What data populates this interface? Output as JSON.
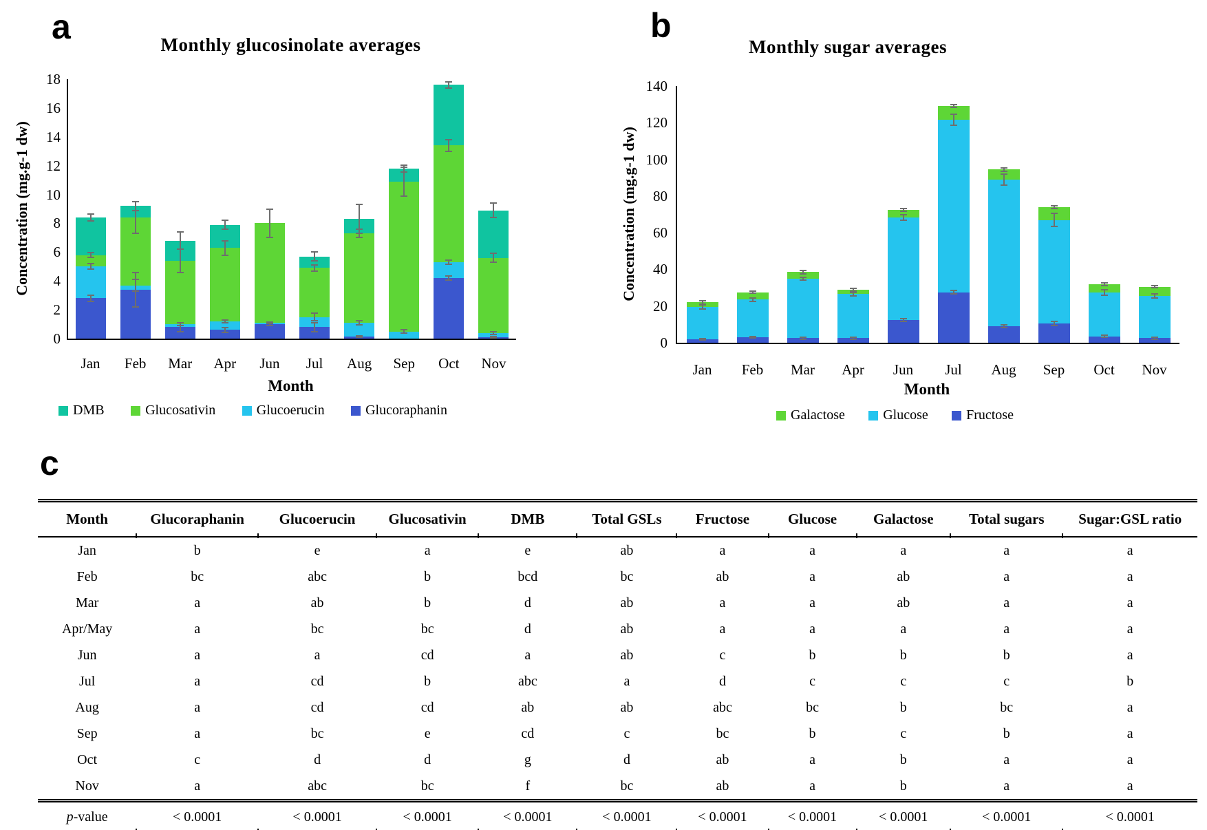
{
  "panels": {
    "a": "a",
    "b": "b",
    "c": "c"
  },
  "chart_data": [
    {
      "id": "monthly-glucosinolate-averages",
      "type": "bar",
      "stacked": true,
      "title": "Monthly glucosinolate averages",
      "xlabel": "Month",
      "ylabel": "Concentration (mg.g-1 dw)",
      "ylim": [
        0,
        18
      ],
      "ytick_step": 2,
      "grid": false,
      "legend_position": "bottom",
      "categories": [
        "Jan",
        "Feb",
        "Mar",
        "Apr",
        "Jun",
        "Jul",
        "Aug",
        "Sep",
        "Oct",
        "Nov"
      ],
      "series": [
        {
          "name": "Glucoraphanin",
          "color": "#3b57ce",
          "values": [
            2.8,
            3.4,
            0.8,
            0.6,
            1.0,
            0.8,
            0.15,
            0.0,
            4.2,
            0.1
          ],
          "errors": [
            0.2,
            1.2,
            0.3,
            0.15,
            0.1,
            0.3,
            0.05,
            0.0,
            0.15,
            0.05
          ]
        },
        {
          "name": "Glucoerucin",
          "color": "#25c4ee",
          "values": [
            2.2,
            0.3,
            0.2,
            0.6,
            0.1,
            0.7,
            0.95,
            0.5,
            1.1,
            0.3
          ],
          "errors": [
            0.2,
            0.4,
            0.1,
            0.1,
            0.05,
            0.25,
            0.15,
            0.1,
            0.15,
            0.1
          ]
        },
        {
          "name": "Glucosativin",
          "color": "#5ed636",
          "values": [
            0.8,
            4.7,
            4.4,
            5.1,
            6.9,
            3.4,
            6.2,
            10.4,
            8.1,
            5.2
          ],
          "errors": [
            0.15,
            1.1,
            0.8,
            0.5,
            1.0,
            0.2,
            0.3,
            1.0,
            0.4,
            0.3
          ]
        },
        {
          "name": "DMB",
          "color": "#10c4a0",
          "values": [
            2.6,
            0.8,
            1.4,
            1.6,
            0.0,
            0.8,
            1.0,
            0.9,
            4.2,
            3.3
          ],
          "errors": [
            0.25,
            0.3,
            0.6,
            0.3,
            0.0,
            0.3,
            1.0,
            0.25,
            0.2,
            0.5
          ]
        }
      ],
      "legend": [
        "DMB",
        "Glucosativin",
        "Glucoerucin",
        "Glucoraphanin"
      ]
    },
    {
      "id": "monthly-sugar-averages",
      "type": "bar",
      "stacked": true,
      "title": "Monthly sugar averages",
      "xlabel": "Month",
      "ylabel": "Concentration (mg.g-1 dw)",
      "ylim": [
        0,
        140
      ],
      "ytick_step": 20,
      "grid": false,
      "legend_position": "bottom",
      "categories": [
        "Jan",
        "Feb",
        "Mar",
        "Apr",
        "Jun",
        "Jul",
        "Aug",
        "Sep",
        "Oct",
        "Nov"
      ],
      "series": [
        {
          "name": "Fructose",
          "color": "#3b57ce",
          "values": [
            2.0,
            3.0,
            2.5,
            2.5,
            12.5,
            27.5,
            9.0,
            10.5,
            3.5,
            2.5
          ],
          "errors": [
            0.4,
            0.5,
            0.5,
            0.5,
            0.8,
            1.0,
            0.6,
            1.0,
            0.5,
            0.5
          ]
        },
        {
          "name": "Glucose",
          "color": "#25c4ee",
          "values": [
            17.5,
            20.5,
            32.5,
            24.0,
            56.0,
            94.0,
            80.0,
            56.5,
            24.0,
            23.0
          ],
          "errors": [
            1.2,
            1.0,
            0.8,
            1.0,
            1.5,
            3.0,
            3.0,
            3.5,
            1.5,
            1.0
          ]
        },
        {
          "name": "Galactose",
          "color": "#5ed636",
          "values": [
            2.5,
            4.0,
            3.5,
            2.5,
            4.0,
            7.5,
            5.5,
            7.0,
            4.5,
            5.0
          ],
          "errors": [
            0.8,
            0.6,
            0.8,
            0.8,
            0.7,
            0.8,
            1.0,
            0.8,
            0.8,
            0.5
          ]
        }
      ],
      "legend": [
        "Galactose",
        "Glucose",
        "Fructose"
      ]
    }
  ],
  "table": {
    "columns": [
      "Month",
      "Glucoraphanin",
      "Glucoerucin",
      "Glucosativin",
      "DMB",
      "Total GSLs",
      "Fructose",
      "Glucose",
      "Galactose",
      "Total sugars",
      "Sugar:GSL ratio"
    ],
    "rows": [
      {
        "month": "Jan",
        "cells": [
          "b",
          "e",
          "a",
          "e",
          "ab",
          "a",
          "a",
          "a",
          "a",
          "a"
        ]
      },
      {
        "month": "Feb",
        "cells": [
          "bc",
          "abc",
          "b",
          "bcd",
          "bc",
          "ab",
          "a",
          "ab",
          "a",
          "a"
        ]
      },
      {
        "month": "Mar",
        "cells": [
          "a",
          "ab",
          "b",
          "d",
          "ab",
          "a",
          "a",
          "ab",
          "a",
          "a"
        ]
      },
      {
        "month": "Apr/May",
        "cells": [
          "a",
          "bc",
          "bc",
          "d",
          "ab",
          "a",
          "a",
          "a",
          "a",
          "a"
        ]
      },
      {
        "month": "Jun",
        "cells": [
          "a",
          "a",
          "cd",
          "a",
          "ab",
          "c",
          "b",
          "b",
          "b",
          "a"
        ]
      },
      {
        "month": "Jul",
        "cells": [
          "a",
          "cd",
          "b",
          "abc",
          "a",
          "d",
          "c",
          "c",
          "c",
          "b"
        ]
      },
      {
        "month": "Aug",
        "cells": [
          "a",
          "cd",
          "cd",
          "ab",
          "ab",
          "abc",
          "bc",
          "b",
          "bc",
          "a"
        ]
      },
      {
        "month": "Sep",
        "cells": [
          "a",
          "bc",
          "e",
          "cd",
          "c",
          "bc",
          "b",
          "c",
          "b",
          "a"
        ]
      },
      {
        "month": "Oct",
        "cells": [
          "c",
          "d",
          "d",
          "g",
          "d",
          "ab",
          "a",
          "b",
          "a",
          "a"
        ]
      },
      {
        "month": "Nov",
        "cells": [
          "a",
          "abc",
          "bc",
          "f",
          "bc",
          "ab",
          "a",
          "b",
          "a",
          "a"
        ]
      }
    ],
    "footer": {
      "label": "p-value",
      "cells": [
        "< 0.0001",
        "< 0.0001",
        "< 0.0001",
        "< 0.0001",
        "< 0.0001",
        "< 0.0001",
        "< 0.0001",
        "< 0.0001",
        "< 0.0001",
        "< 0.0001"
      ]
    }
  }
}
